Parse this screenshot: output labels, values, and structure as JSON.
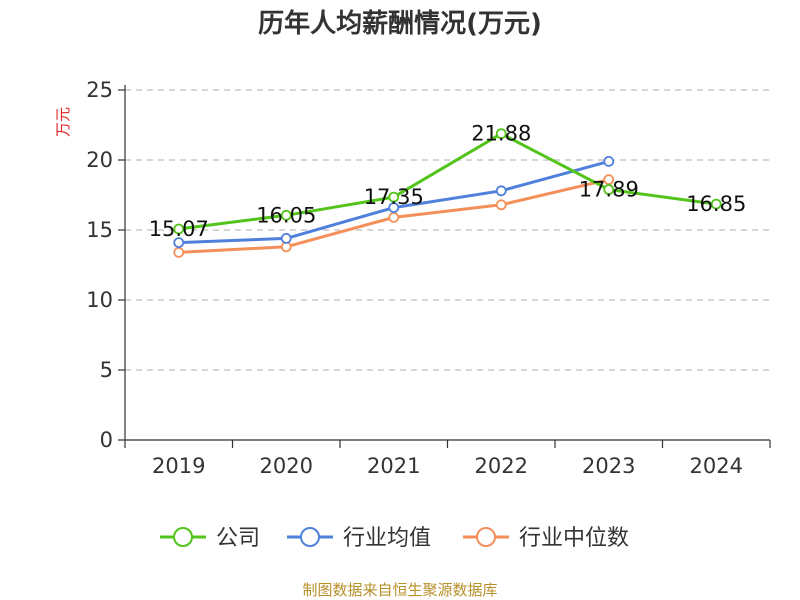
{
  "chart_data": {
    "type": "line",
    "title": "历年人均薪酬情况(万元)",
    "ylabel": "万元",
    "xlabel": "",
    "categories": [
      "2019",
      "2020",
      "2021",
      "2022",
      "2023",
      "2024"
    ],
    "ylim": [
      0,
      25
    ],
    "yticks": [
      "0",
      "5",
      "10",
      "15",
      "20",
      "25"
    ],
    "grid": true,
    "legend_position": "bottom",
    "series": [
      {
        "name": "公司",
        "color": "#52c41a",
        "values": [
          15.07,
          16.05,
          17.35,
          21.88,
          17.89,
          16.85
        ],
        "data_labels": [
          "15.07",
          "16.05",
          "17.35",
          "21.88",
          "17.89",
          "16.85"
        ]
      },
      {
        "name": "行业均值",
        "color": "#4e80dc",
        "values": [
          14.1,
          14.4,
          16.6,
          17.8,
          19.9,
          null
        ]
      },
      {
        "name": "行业中位数",
        "color": "#f58f5a",
        "values": [
          13.4,
          13.8,
          15.9,
          16.8,
          18.6,
          null
        ]
      }
    ]
  },
  "source": "制图数据来自恒生聚源数据库"
}
